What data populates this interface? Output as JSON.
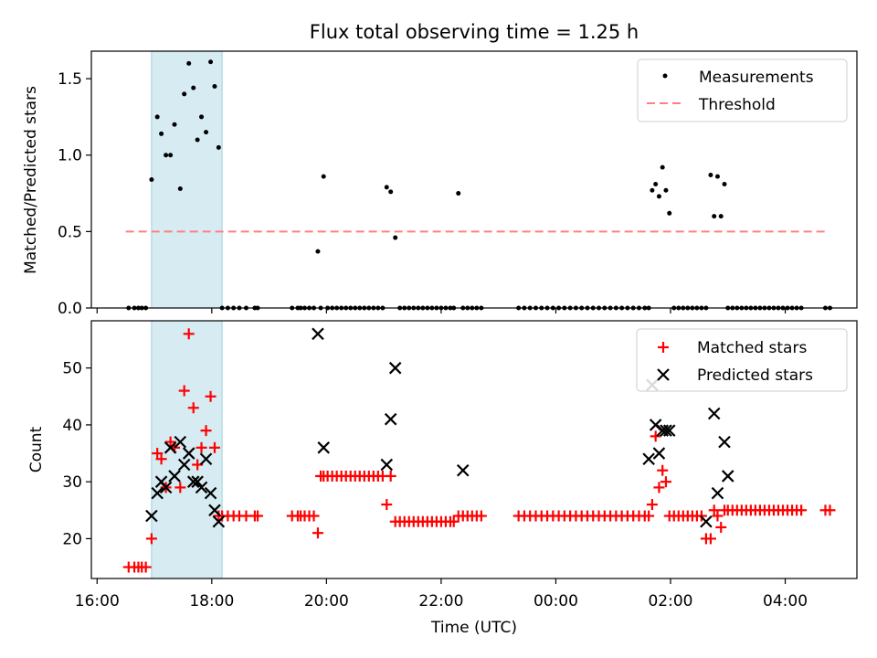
{
  "chart_data": [
    {
      "type": "scatter",
      "title": "Flux total observing time = 1.25 h",
      "ylabel": "Matched/Predicted stars",
      "ylim": [
        0,
        1.68
      ],
      "yticks": [
        0.0,
        0.5,
        1.0,
        1.5
      ],
      "ytick_labels": [
        "0.0",
        "0.5",
        "1.0",
        "1.5"
      ],
      "xlim": [
        15.9,
        29.25
      ],
      "shaded_span": [
        16.95,
        18.18
      ],
      "legend": [
        "Measurements",
        "Threshold"
      ],
      "threshold": {
        "name": "Threshold",
        "value": 0.5,
        "x": [
          16.5,
          28.7
        ],
        "color": "#ff8080"
      },
      "series": [
        {
          "name": "Measurements",
          "color": "#000000",
          "x": [
            16.55,
            16.65,
            16.72,
            16.78,
            16.85,
            16.95,
            17.05,
            17.12,
            17.2,
            17.28,
            17.35,
            17.45,
            17.52,
            17.6,
            17.68,
            17.75,
            17.82,
            17.9,
            17.98,
            18.05,
            18.12,
            18.18,
            18.28,
            18.38,
            18.48,
            18.6,
            18.75,
            18.8,
            19.4,
            19.5,
            19.55,
            19.62,
            19.7,
            19.78,
            19.85,
            19.9,
            19.95,
            20.02,
            20.1,
            20.18,
            20.26,
            20.34,
            20.42,
            20.5,
            20.58,
            20.66,
            20.74,
            20.82,
            20.9,
            20.98,
            21.05,
            21.12,
            21.2,
            21.28,
            21.36,
            21.44,
            21.52,
            21.6,
            21.68,
            21.76,
            21.84,
            21.92,
            22.0,
            22.08,
            22.16,
            22.22,
            22.3,
            22.38,
            22.46,
            22.54,
            22.62,
            22.7,
            23.35,
            23.45,
            23.55,
            23.65,
            23.75,
            23.85,
            23.95,
            24.05,
            24.15,
            24.25,
            24.35,
            24.45,
            24.55,
            24.65,
            24.75,
            24.85,
            24.95,
            25.05,
            25.15,
            25.25,
            25.35,
            25.45,
            25.55,
            25.62,
            25.68,
            25.74,
            25.8,
            25.86,
            25.92,
            25.98,
            26.06,
            26.14,
            26.22,
            26.3,
            26.38,
            26.46,
            26.54,
            26.62,
            26.7,
            26.76,
            26.82,
            26.88,
            26.94,
            27.0,
            27.08,
            27.16,
            27.24,
            27.32,
            27.4,
            27.48,
            27.56,
            27.64,
            27.72,
            27.8,
            27.88,
            27.96,
            28.04,
            28.12,
            28.2,
            28.28,
            28.7,
            28.78
          ],
          "y": [
            0,
            0,
            0,
            0,
            0,
            0.84,
            1.25,
            1.14,
            1.0,
            1.0,
            1.2,
            0.78,
            1.4,
            1.6,
            1.44,
            1.1,
            1.25,
            1.15,
            1.61,
            1.45,
            1.05,
            0,
            0,
            0,
            0,
            0,
            0,
            0,
            0,
            0,
            0,
            0,
            0,
            0,
            0.37,
            0,
            0.86,
            0,
            0,
            0,
            0,
            0,
            0,
            0,
            0,
            0,
            0,
            0,
            0,
            0,
            0.79,
            0.76,
            0.46,
            0,
            0,
            0,
            0,
            0,
            0,
            0,
            0,
            0,
            0,
            0,
            0,
            0,
            0.75,
            0,
            0,
            0,
            0,
            0,
            0,
            0,
            0,
            0,
            0,
            0,
            0,
            0,
            0,
            0,
            0,
            0,
            0,
            0,
            0,
            0,
            0,
            0,
            0,
            0,
            0,
            0,
            0,
            0,
            0.77,
            0.81,
            0.73,
            0.92,
            0.77,
            0.62,
            0,
            0,
            0,
            0,
            0,
            0,
            0,
            0,
            0.87,
            0.6,
            0.86,
            0.6,
            0.81,
            0,
            0,
            0,
            0,
            0,
            0,
            0,
            0,
            0,
            0,
            0,
            0,
            0,
            0,
            0,
            0,
            0,
            0,
            0
          ]
        }
      ]
    },
    {
      "type": "scatter",
      "xlabel": "Time (UTC)",
      "ylabel": "Count",
      "ylim": [
        13,
        58.3
      ],
      "yticks": [
        20,
        30,
        40,
        50
      ],
      "ytick_labels": [
        "20",
        "30",
        "40",
        "50"
      ],
      "xlim": [
        15.9,
        29.25
      ],
      "xticks": [
        16,
        18,
        20,
        22,
        24,
        26,
        28
      ],
      "xtick_labels": [
        "16:00",
        "18:00",
        "20:00",
        "22:00",
        "00:00",
        "02:00",
        "04:00"
      ],
      "shaded_span": [
        16.95,
        18.18
      ],
      "legend": [
        "Matched stars",
        "Predicted stars"
      ],
      "series": [
        {
          "name": "Matched stars",
          "marker": "plus",
          "color": "#ff0000",
          "x": [
            16.55,
            16.65,
            16.72,
            16.78,
            16.85,
            16.95,
            17.05,
            17.12,
            17.2,
            17.28,
            17.35,
            17.45,
            17.52,
            17.6,
            17.68,
            17.75,
            17.82,
            17.9,
            17.98,
            18.05,
            18.12,
            18.18,
            18.28,
            18.38,
            18.48,
            18.6,
            18.75,
            18.8,
            19.4,
            19.5,
            19.55,
            19.62,
            19.7,
            19.78,
            19.85,
            19.9,
            19.95,
            20.02,
            20.1,
            20.18,
            20.26,
            20.34,
            20.42,
            20.5,
            20.58,
            20.66,
            20.74,
            20.82,
            20.9,
            20.98,
            21.05,
            21.12,
            21.2,
            21.28,
            21.36,
            21.44,
            21.52,
            21.6,
            21.68,
            21.76,
            21.84,
            21.92,
            22.0,
            22.08,
            22.16,
            22.22,
            22.3,
            22.38,
            22.46,
            22.54,
            22.62,
            22.7,
            23.35,
            23.45,
            23.55,
            23.65,
            23.75,
            23.85,
            23.95,
            24.05,
            24.15,
            24.25,
            24.35,
            24.45,
            24.55,
            24.65,
            24.75,
            24.85,
            24.95,
            25.05,
            25.15,
            25.25,
            25.35,
            25.45,
            25.55,
            25.62,
            25.68,
            25.74,
            25.8,
            25.86,
            25.92,
            25.98,
            26.06,
            26.14,
            26.22,
            26.3,
            26.38,
            26.46,
            26.54,
            26.62,
            26.7,
            26.76,
            26.82,
            26.88,
            26.94,
            27.0,
            27.08,
            27.16,
            27.24,
            27.32,
            27.4,
            27.48,
            27.56,
            27.64,
            27.72,
            27.8,
            27.88,
            27.96,
            28.04,
            28.12,
            28.2,
            28.28,
            28.7,
            28.78
          ],
          "y": [
            15,
            15,
            15,
            15,
            15,
            20,
            35,
            34,
            29,
            37,
            36,
            29,
            46,
            56,
            43,
            33,
            36,
            39,
            45,
            36,
            24,
            24,
            24,
            24,
            24,
            24,
            24,
            24,
            24,
            24,
            24,
            24,
            24,
            24,
            21,
            31,
            31,
            31,
            31,
            31,
            31,
            31,
            31,
            31,
            31,
            31,
            31,
            31,
            31,
            31,
            26,
            31,
            23,
            23,
            23,
            23,
            23,
            23,
            23,
            23,
            23,
            23,
            23,
            23,
            23,
            23,
            24,
            24,
            24,
            24,
            24,
            24,
            24,
            24,
            24,
            24,
            24,
            24,
            24,
            24,
            24,
            24,
            24,
            24,
            24,
            24,
            24,
            24,
            24,
            24,
            24,
            24,
            24,
            24,
            24,
            24,
            26,
            38,
            29,
            32,
            30,
            24,
            24,
            24,
            24,
            24,
            24,
            24,
            24,
            20,
            20,
            25,
            24,
            22,
            25,
            25,
            25,
            25,
            25,
            25,
            25,
            25,
            25,
            25,
            25,
            25,
            25,
            25,
            25,
            25,
            25,
            25,
            25,
            25
          ]
        },
        {
          "name": "Predicted stars",
          "marker": "x",
          "color": "#000000",
          "x": [
            16.95,
            17.05,
            17.12,
            17.2,
            17.28,
            17.35,
            17.45,
            17.52,
            17.6,
            17.68,
            17.75,
            17.82,
            17.9,
            17.98,
            18.05,
            18.12,
            19.85,
            19.95,
            21.05,
            21.12,
            21.2,
            22.38,
            25.62,
            25.68,
            25.74,
            25.8,
            25.86,
            25.92,
            25.98,
            26.62,
            26.76,
            26.82,
            26.94,
            27.0
          ],
          "y": [
            24,
            28,
            30,
            29,
            36,
            31,
            37,
            33,
            35,
            30,
            30,
            29,
            34,
            28,
            25,
            23,
            56,
            36,
            33,
            41,
            50,
            32,
            34,
            47,
            40,
            35,
            39,
            39,
            39,
            23,
            42,
            28,
            37,
            31
          ]
        }
      ]
    }
  ]
}
